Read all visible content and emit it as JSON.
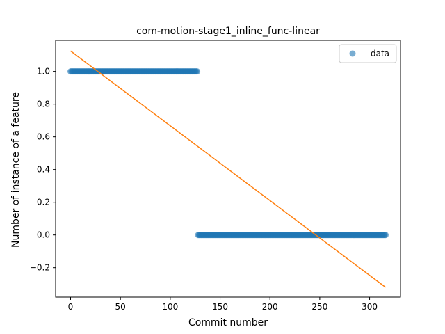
{
  "chart_data": {
    "type": "scatter",
    "title": "com-motion-stage1_inline_func-linear",
    "xlabel": "Commit number",
    "ylabel": "Number of instance of a feature",
    "xlim": [
      -15,
      331
    ],
    "ylim": [
      -0.38,
      1.19
    ],
    "xticks": [
      0,
      50,
      100,
      150,
      200,
      250,
      300
    ],
    "xtick_labels": [
      "0",
      "50",
      "100",
      "150",
      "200",
      "250",
      "300"
    ],
    "yticks": [
      -0.2,
      0.0,
      0.2,
      0.4,
      0.6,
      0.8,
      1.0
    ],
    "ytick_labels": [
      "−0.2",
      "0.0",
      "0.2",
      "0.4",
      "0.6",
      "0.8",
      "1.0"
    ],
    "grid": false,
    "legend_position": "top-right",
    "series": [
      {
        "name": "data",
        "kind": "scatter",
        "color": "#1f77b4",
        "segments": [
          {
            "x_start": 0,
            "x_end": 127,
            "step": 1,
            "y": 1.0
          },
          {
            "x_start": 128,
            "x_end": 316,
            "step": 1,
            "y": 0.0
          }
        ]
      },
      {
        "kind": "line",
        "color": "#ff7f0e",
        "x": [
          0,
          316
        ],
        "y": [
          1.125,
          -0.32
        ]
      }
    ]
  }
}
